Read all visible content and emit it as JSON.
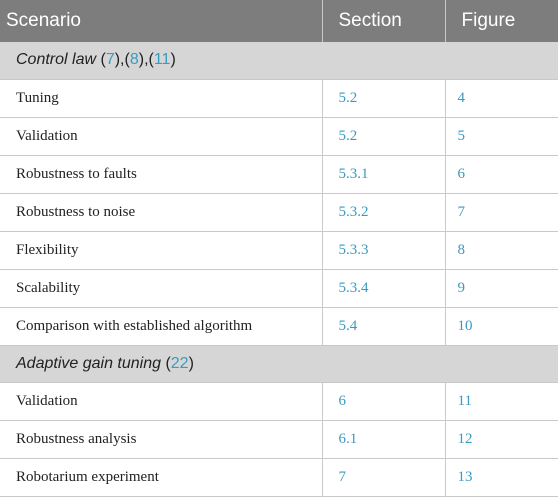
{
  "table": {
    "headers": [
      "Scenario",
      "Section",
      "Figure"
    ],
    "groups": [
      {
        "title": "Control law",
        "refs": [
          "7",
          "8",
          "11"
        ],
        "rows": [
          {
            "scenario": "Tuning",
            "section": "5.2",
            "figure": "4"
          },
          {
            "scenario": "Validation",
            "section": "5.2",
            "figure": "5"
          },
          {
            "scenario": "Robustness to faults",
            "section": "5.3.1",
            "figure": "6"
          },
          {
            "scenario": "Robustness to noise",
            "section": "5.3.2",
            "figure": "7"
          },
          {
            "scenario": "Flexibility",
            "section": "5.3.3",
            "figure": "8"
          },
          {
            "scenario": "Scalability",
            "section": "5.3.4",
            "figure": "9"
          },
          {
            "scenario": "Comparison with established algorithm",
            "section": "5.4",
            "figure": "10"
          }
        ]
      },
      {
        "title": "Adaptive gain tuning",
        "refs": [
          "22"
        ],
        "rows": [
          {
            "scenario": "Validation",
            "section": "6",
            "figure": "11"
          },
          {
            "scenario": "Robustness analysis",
            "section": "6.1",
            "figure": "12"
          },
          {
            "scenario": "Robotarium experiment",
            "section": "7",
            "figure": "13"
          }
        ]
      }
    ]
  },
  "colors": {
    "header_bg": "#7d7d7d",
    "group_bg": "#d6d6d6",
    "link": "#3a9bc2"
  }
}
